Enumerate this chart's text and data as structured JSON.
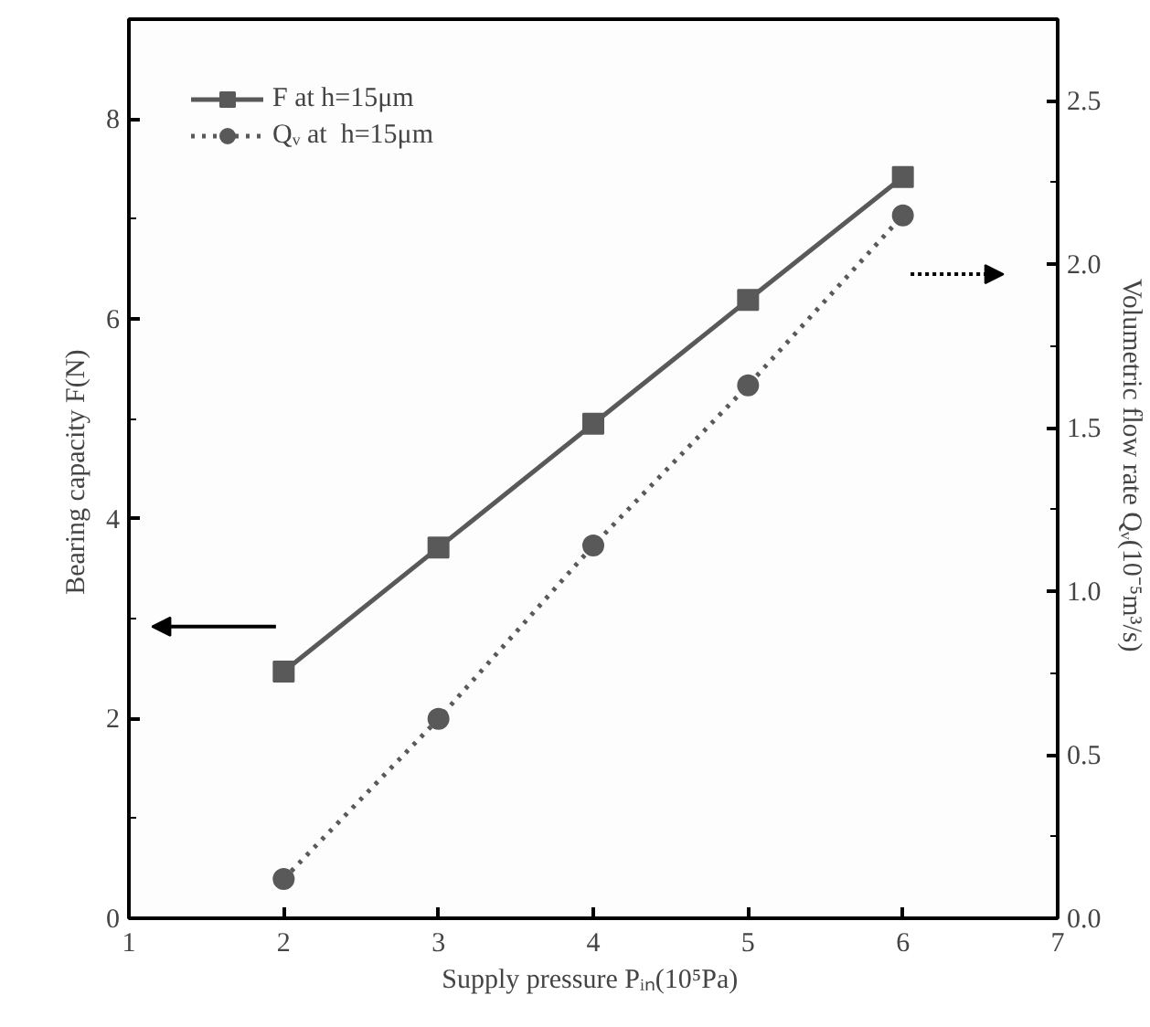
{
  "chart_data": {
    "type": "line",
    "xlabel": "Supply pressure  Pᵢₙ(10⁵Pa)",
    "ylabel": "Bearing capacity  F(N)",
    "y2label": "Volumetric flow rate  Qᵥ(10⁻⁵m³/s)",
    "x": [
      2,
      3,
      4,
      5,
      6
    ],
    "xlim": [
      1,
      7
    ],
    "xticks": [
      1,
      2,
      3,
      4,
      5,
      6,
      7
    ],
    "ylim": [
      0,
      9
    ],
    "yticks": [
      0,
      2,
      4,
      6,
      8
    ],
    "y2lim": [
      0,
      2.75
    ],
    "y2ticks": [
      {
        "value": 0,
        "label": "0.0"
      },
      0.5,
      {
        "value": 1,
        "label": "1.0"
      },
      1.5,
      {
        "value": 2,
        "label": "2.0"
      },
      2.5
    ],
    "series": [
      {
        "name": "F at h=15μm",
        "color": "#595959",
        "values": [
          2.47,
          3.71,
          4.95,
          6.19,
          7.42
        ],
        "marker": "square",
        "line_style": "solid"
      },
      {
        "name": "Qᵥ at  h=15μm",
        "color": "#595959",
        "values": [
          0.12,
          0.61,
          1.14,
          1.63,
          2.15
        ],
        "marker": "circle",
        "line_style": "dotted",
        "axis": "y2"
      }
    ],
    "grid": false,
    "legend": "top left"
  }
}
